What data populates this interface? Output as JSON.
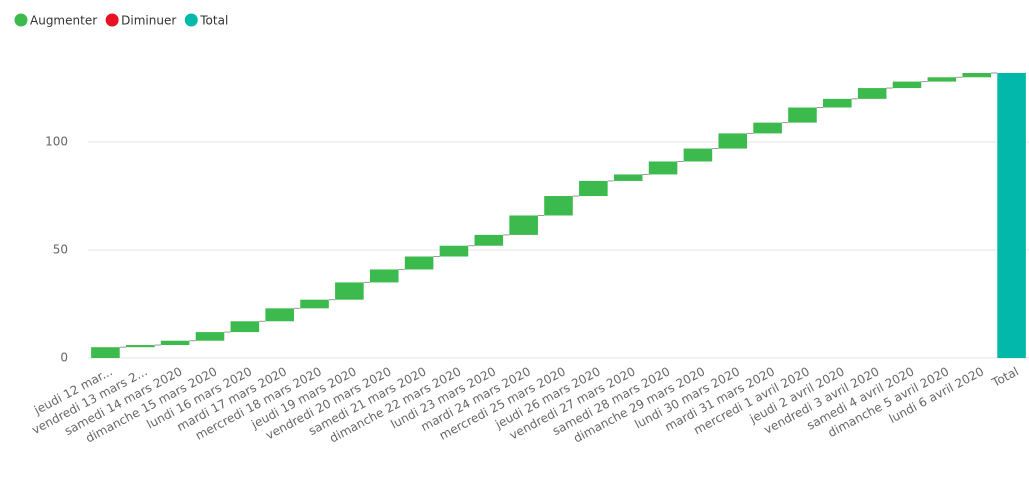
{
  "chart_data": {
    "type": "waterfall",
    "legend": [
      {
        "name": "Augmenter",
        "color": "#3dba4e"
      },
      {
        "name": "Diminuer",
        "color": "#e81123"
      },
      {
        "name": "Total",
        "color": "#01b8aa"
      }
    ],
    "categories": [
      "jeudi 12 mar...",
      "vendredi 13 mars 2...",
      "samedi 14 mars 2020",
      "dimanche 15 mars 2020",
      "lundi 16 mars 2020",
      "mardi 17 mars 2020",
      "mercredi 18 mars 2020",
      "jeudi 19 mars 2020",
      "vendredi 20 mars 2020",
      "samedi 21 mars 2020",
      "dimanche 22 mars 2020",
      "lundi 23 mars 2020",
      "mardi 24 mars 2020",
      "mercredi 25 mars 2020",
      "jeudi 26 mars 2020",
      "vendredi 27 mars 2020",
      "samedi 28 mars 2020",
      "dimanche 29 mars 2020",
      "lundi 30 mars 2020",
      "mardi 31 mars 2020",
      "mercredi 1 avril 2020",
      "jeudi 2 avril 2020",
      "vendredi 3 avril 2020",
      "samedi 4 avril 2020",
      "dimanche 5 avril 2020",
      "lundi 6 avril 2020"
    ],
    "values": [
      5,
      1,
      2,
      4,
      5,
      6,
      4,
      8,
      6,
      6,
      5,
      5,
      9,
      9,
      7,
      3,
      6,
      6,
      7,
      5,
      7,
      4,
      5,
      3,
      2,
      2
    ],
    "total": {
      "label": "Total",
      "value": 132
    },
    "ylim": [
      0,
      138
    ],
    "yticks": [
      0,
      50,
      100
    ],
    "grid": true
  }
}
